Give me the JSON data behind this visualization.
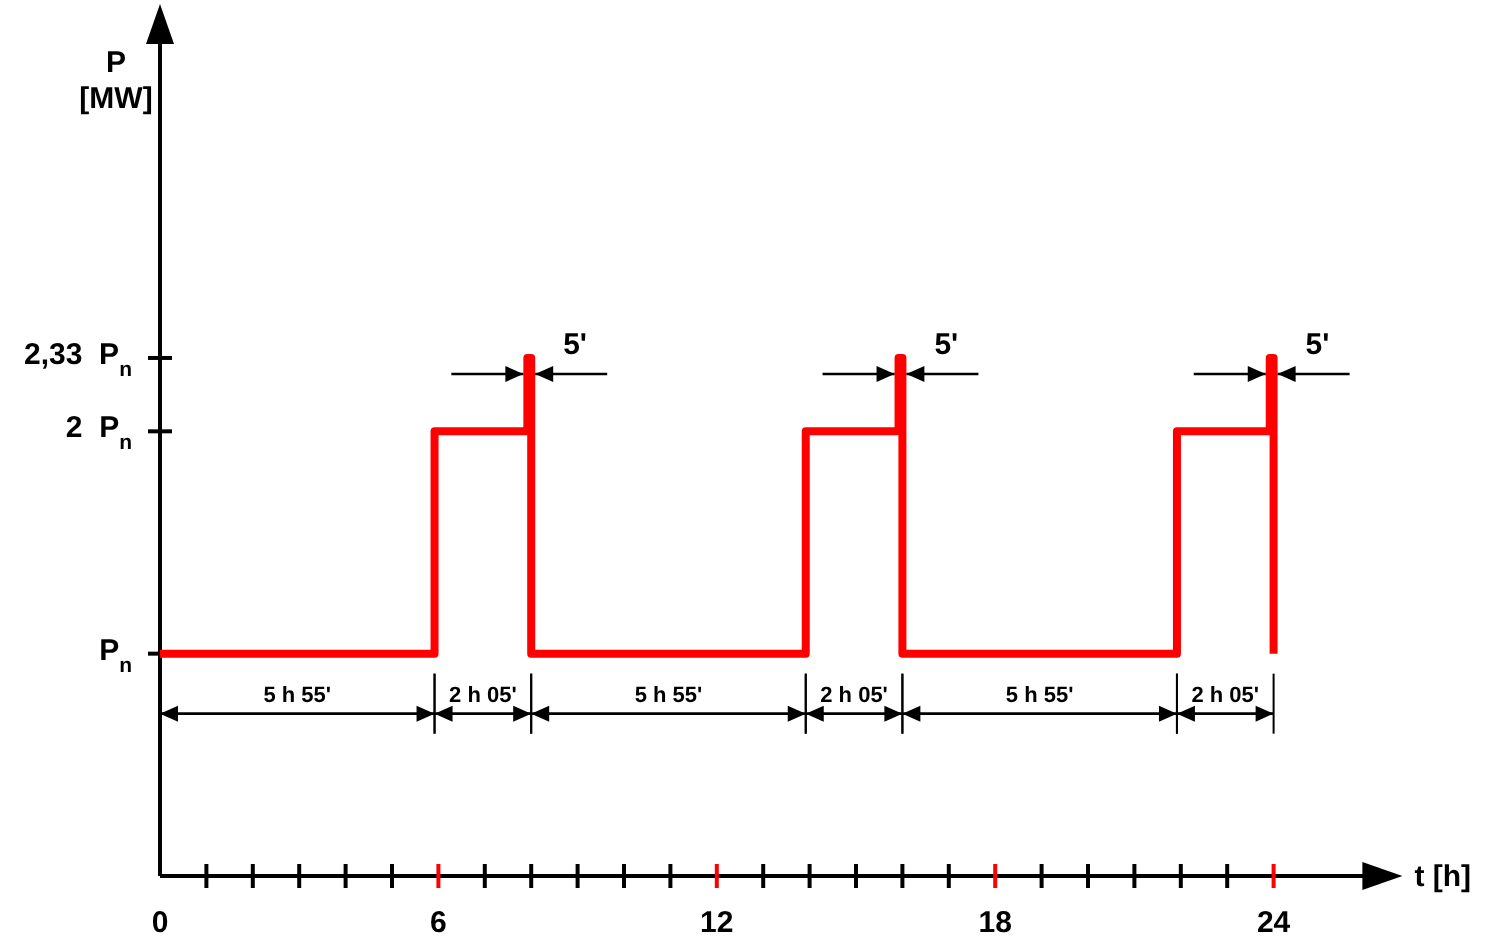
{
  "chart_data": {
    "type": "step",
    "xlabel": "t [h]",
    "ylabel": "P\n[MW]",
    "x": [
      0,
      5.917,
      7.917,
      8,
      13.917,
      15.917,
      16,
      21.917,
      23.917,
      24
    ],
    "series": [
      {
        "color": "#ff0000",
        "values": [
          1,
          2,
          2.33,
          1,
          2,
          2.33,
          1,
          2,
          2.33,
          1
        ]
      }
    ],
    "xlim": [
      0,
      26
    ],
    "ylim": [
      0,
      3.85
    ],
    "xticks": [
      0,
      {
        "value": 1,
        "label": null
      },
      {
        "value": 2,
        "label": null
      },
      {
        "value": 3,
        "label": null
      },
      {
        "value": 4,
        "label": null
      },
      {
        "value": 5,
        "label": null
      },
      6,
      {
        "value": 7,
        "label": null
      },
      {
        "value": 8,
        "label": null
      },
      {
        "value": 9,
        "label": null
      },
      {
        "value": 10,
        "label": null
      },
      {
        "value": 11,
        "label": null
      },
      12,
      {
        "value": 13,
        "label": null
      },
      {
        "value": 14,
        "label": null
      },
      {
        "value": 15,
        "label": null
      },
      {
        "value": 16,
        "label": null
      },
      {
        "value": 17,
        "label": null
      },
      18,
      {
        "value": 19,
        "label": null
      },
      {
        "value": 20,
        "label": null
      },
      {
        "value": 21,
        "label": null
      },
      {
        "value": 22,
        "label": null
      },
      {
        "value": 23,
        "label": null
      },
      24
    ],
    "yticks": [
      {
        "value": 1,
        "label": "P$_{n}$"
      },
      {
        "value": 2,
        "label": "2  P$_{n}$"
      },
      {
        "value": 2.33,
        "label": "2,33  P$_{n}$"
      }
    ],
    "grid": false,
    "annotations": [
      "5 h 55'",
      "2 h 05'",
      "5 h 55'",
      "2 h 05'",
      "5 h 55'",
      "2 h 05'",
      "5'",
      "5'",
      "5'"
    ]
  }
}
